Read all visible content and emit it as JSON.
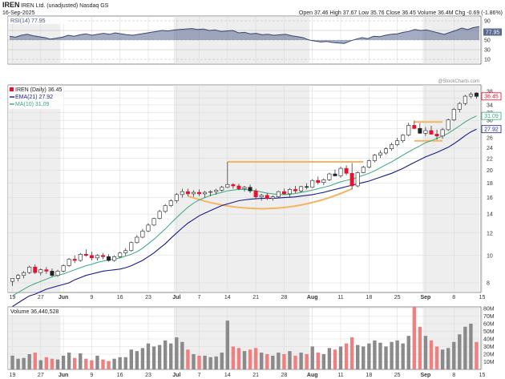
{
  "header": {
    "symbol": "IREN",
    "name": "IREN Ltd. (unadjusted) Nasdaq GS",
    "date": "16-Sep-2025",
    "quote": "Open 37.46  High 37.67  Low 35.76  Close 36.45  Volume 36.4M  Chg -0.69 (-1.86%)",
    "watermark": "@StockCharts.com"
  },
  "colors": {
    "up": "#ffffff",
    "down": "#e8102c",
    "ema": "#1a1a8a",
    "ma": "#3aa87c",
    "rsi": "#4a5a80",
    "pattern": "#f3b561",
    "volume_up": "#8a8a8a",
    "volume_down": "#ee8080",
    "panel_shade": "#eeeeee"
  },
  "chart_data": [
    {
      "type": "line",
      "title": "RSI(14) 77.95",
      "legend": [
        {
          "text": "RSI(14) 77.95",
          "color": "#4a5a80"
        }
      ],
      "series": [
        {
          "name": "RSI(14)",
          "values": [
            58,
            56,
            60,
            62,
            59,
            57,
            55,
            52,
            54,
            56,
            60,
            58,
            61,
            63,
            60,
            62,
            64,
            62,
            65,
            63,
            61,
            60,
            62,
            64,
            66,
            68,
            70,
            69,
            71,
            72,
            73,
            74,
            72,
            73,
            70,
            71,
            68,
            69,
            70,
            65,
            66,
            63,
            64,
            61,
            62,
            60,
            61,
            62,
            59,
            57,
            55,
            50,
            48,
            46,
            47,
            45,
            44,
            43,
            48,
            52,
            55,
            53,
            58,
            57,
            60,
            62,
            63,
            66,
            68,
            72,
            70,
            71,
            68,
            65,
            62,
            66,
            70,
            75,
            72,
            76,
            78
          ]
        }
      ],
      "ylim": [
        0,
        100
      ],
      "ticks": [
        "90",
        "70",
        "50",
        "30",
        "10"
      ],
      "tick_values": [
        90,
        70,
        50,
        30,
        10
      ],
      "current_label": "77.95",
      "current_value": 77.95
    },
    {
      "type": "candlestick",
      "title": "IREN (Daily) 36.45",
      "legend": [
        {
          "text": "IREN (Daily) 36.45",
          "color": "#222222"
        },
        {
          "text": "EMA(21) 27.92",
          "color": "#1a1a8a"
        },
        {
          "text": "MA(10) 31.09",
          "color": "#3aa87c"
        }
      ],
      "scale": "log",
      "ylim": [
        7.4,
        40
      ],
      "ticks": [
        "38",
        "36",
        "34",
        "32",
        "30",
        "28",
        "26",
        "24",
        "22",
        "20",
        "18",
        "16",
        "14",
        "12",
        "10",
        "8"
      ],
      "tick_values": [
        38,
        36,
        34,
        32,
        30,
        28,
        26,
        24,
        22,
        20,
        18,
        16,
        14,
        12,
        10,
        8
      ],
      "price_labels": [
        {
          "text": "36.45",
          "value": 36.45,
          "color": "#e8102c"
        },
        {
          "text": "31.09",
          "value": 31.09,
          "color": "#3aa87c"
        },
        {
          "text": "27.92",
          "value": 27.92,
          "color": "#1a1a8a"
        }
      ],
      "x_labels": [
        "19",
        "27",
        "Jun",
        "9",
        "16",
        "23",
        "Jul",
        "7",
        "14",
        "21",
        "28",
        "Aug",
        "11",
        "18",
        "25",
        "Sep",
        "8",
        "15"
      ],
      "x_label_index": [
        0,
        5,
        9,
        14,
        19,
        24,
        29,
        33,
        38,
        43,
        48,
        53,
        58,
        63,
        68,
        73,
        78,
        83
      ],
      "candles": [
        [
          8.1,
          8.3,
          7.8,
          8.3
        ],
        [
          8.3,
          8.6,
          8.1,
          8.5
        ],
        [
          8.5,
          8.8,
          8.3,
          8.7
        ],
        [
          8.7,
          9.2,
          8.6,
          9.1
        ],
        [
          9.1,
          9.3,
          8.6,
          8.7
        ],
        [
          8.7,
          9.0,
          8.5,
          8.9
        ],
        [
          8.9,
          9.1,
          8.6,
          8.8
        ],
        [
          8.8,
          9.0,
          8.4,
          8.5
        ],
        [
          8.5,
          8.9,
          8.4,
          8.8
        ],
        [
          8.8,
          9.3,
          8.7,
          9.2
        ],
        [
          9.2,
          9.8,
          9.1,
          9.7
        ],
        [
          9.7,
          10.0,
          9.4,
          9.6
        ],
        [
          9.6,
          10.2,
          9.5,
          10.1
        ],
        [
          10.1,
          10.5,
          9.9,
          10.0
        ],
        [
          10.0,
          10.3,
          9.6,
          9.8
        ],
        [
          9.8,
          10.1,
          9.6,
          10.0
        ],
        [
          10.0,
          10.2,
          9.7,
          9.9
        ],
        [
          9.9,
          10.1,
          9.5,
          9.6
        ],
        [
          9.6,
          10.0,
          9.5,
          9.9
        ],
        [
          9.9,
          10.3,
          9.8,
          10.2
        ],
        [
          10.2,
          10.6,
          10.0,
          10.4
        ],
        [
          10.4,
          11.2,
          10.3,
          11.1
        ],
        [
          11.1,
          11.8,
          11.0,
          11.6
        ],
        [
          11.6,
          12.4,
          11.5,
          12.2
        ],
        [
          12.2,
          13.0,
          12.1,
          12.8
        ],
        [
          12.8,
          13.6,
          12.7,
          13.5
        ],
        [
          13.5,
          14.5,
          13.4,
          14.3
        ],
        [
          14.3,
          15.2,
          14.1,
          15.0
        ],
        [
          15.0,
          15.8,
          14.8,
          15.6
        ],
        [
          15.6,
          16.6,
          15.3,
          16.4
        ],
        [
          16.4,
          17.2,
          16.0,
          16.8
        ],
        [
          16.8,
          17.2,
          16.2,
          16.5
        ],
        [
          16.5,
          17.0,
          16.1,
          16.7
        ],
        [
          16.7,
          17.1,
          16.2,
          16.5
        ],
        [
          16.5,
          16.9,
          16.0,
          16.7
        ],
        [
          16.7,
          17.0,
          16.2,
          16.8
        ],
        [
          16.8,
          17.2,
          16.4,
          17.0
        ],
        [
          17.0,
          17.6,
          16.8,
          17.4
        ],
        [
          17.4,
          21.4,
          17.3,
          17.8
        ],
        [
          17.8,
          18.0,
          17.2,
          17.6
        ],
        [
          17.6,
          17.9,
          17.0,
          17.2
        ],
        [
          17.2,
          17.6,
          16.8,
          17.4
        ],
        [
          17.4,
          17.8,
          16.6,
          16.9
        ],
        [
          16.9,
          17.2,
          15.9,
          16.1
        ],
        [
          16.1,
          16.5,
          15.6,
          16.3
        ],
        [
          16.3,
          16.6,
          15.7,
          15.9
        ],
        [
          15.9,
          16.3,
          15.6,
          16.1
        ],
        [
          16.1,
          16.9,
          16.0,
          16.8
        ],
        [
          16.8,
          17.2,
          16.4,
          16.5
        ],
        [
          16.5,
          17.3,
          16.1,
          17.1
        ],
        [
          17.1,
          17.6,
          16.6,
          16.9
        ],
        [
          16.9,
          17.6,
          16.7,
          17.5
        ],
        [
          17.5,
          18.0,
          17.1,
          17.4
        ],
        [
          17.4,
          18.6,
          17.3,
          18.4
        ],
        [
          18.4,
          19.0,
          17.8,
          18.1
        ],
        [
          18.1,
          18.7,
          17.7,
          18.5
        ],
        [
          18.5,
          19.6,
          18.3,
          19.4
        ],
        [
          19.4,
          20.1,
          19.0,
          19.1
        ],
        [
          19.1,
          20.6,
          18.8,
          20.3
        ],
        [
          20.3,
          20.8,
          19.2,
          19.5
        ],
        [
          19.5,
          21.2,
          17.1,
          17.6
        ],
        [
          17.6,
          19.8,
          17.4,
          19.6
        ],
        [
          19.6,
          20.7,
          19.5,
          20.5
        ],
        [
          20.5,
          21.8,
          20.3,
          21.6
        ],
        [
          21.6,
          22.8,
          21.3,
          22.6
        ],
        [
          22.6,
          23.5,
          22.1,
          23.0
        ],
        [
          23.0,
          24.1,
          22.7,
          23.8
        ],
        [
          23.8,
          25.0,
          23.4,
          24.6
        ],
        [
          24.6,
          26.0,
          24.3,
          25.4
        ],
        [
          25.4,
          26.8,
          25.0,
          26.6
        ],
        [
          26.6,
          29.4,
          26.3,
          28.8
        ],
        [
          28.8,
          29.9,
          27.9,
          28.1
        ],
        [
          28.1,
          29.3,
          26.9,
          27.0
        ],
        [
          27.0,
          28.4,
          26.4,
          27.6
        ],
        [
          27.6,
          28.7,
          26.7,
          26.8
        ],
        [
          26.8,
          27.8,
          25.6,
          26.4
        ],
        [
          26.4,
          28.2,
          25.8,
          27.8
        ],
        [
          27.8,
          30.4,
          27.5,
          30.1
        ],
        [
          30.1,
          33.2,
          29.8,
          32.8
        ],
        [
          32.8,
          34.8,
          32.0,
          34.4
        ],
        [
          34.4,
          36.9,
          33.9,
          36.5
        ],
        [
          36.5,
          37.7,
          35.9,
          37.1
        ],
        [
          37.46,
          37.67,
          35.76,
          36.45
        ]
      ],
      "ema21": [
        6.6,
        6.8,
        7.0,
        7.2,
        7.3,
        7.45,
        7.6,
        7.7,
        7.8,
        7.9,
        8.0,
        8.2,
        8.35,
        8.5,
        8.6,
        8.7,
        8.8,
        8.85,
        8.9,
        8.95,
        9.05,
        9.2,
        9.4,
        9.6,
        9.9,
        10.2,
        10.6,
        11.0,
        11.5,
        12.0,
        12.5,
        13.0,
        13.4,
        13.8,
        14.1,
        14.4,
        14.7,
        15.0,
        15.2,
        15.4,
        15.6,
        15.7,
        15.8,
        15.85,
        15.9,
        15.9,
        15.9,
        15.95,
        16.0,
        16.05,
        16.1,
        16.2,
        16.3,
        16.4,
        16.55,
        16.7,
        16.9,
        17.1,
        17.3,
        17.5,
        17.7,
        17.9,
        18.1,
        18.3,
        18.6,
        18.9,
        19.2,
        19.5,
        19.9,
        20.3,
        20.8,
        21.3,
        21.8,
        22.3,
        22.7,
        23.1,
        23.6,
        24.1,
        24.8,
        25.6,
        26.5,
        27.3,
        27.92
      ],
      "ma10": [
        7.2,
        7.4,
        7.6,
        7.8,
        7.95,
        8.1,
        8.25,
        8.4,
        8.5,
        8.6,
        8.75,
        8.9,
        9.05,
        9.2,
        9.3,
        9.45,
        9.55,
        9.65,
        9.7,
        9.8,
        9.95,
        10.1,
        10.3,
        10.6,
        11.0,
        11.4,
        11.9,
        12.4,
        13.0,
        13.6,
        14.2,
        14.8,
        15.3,
        15.7,
        16.0,
        16.3,
        16.5,
        16.7,
        16.9,
        17.0,
        17.1,
        17.1,
        17.0,
        16.9,
        16.75,
        16.6,
        16.5,
        16.4,
        16.4,
        16.45,
        16.55,
        16.7,
        16.85,
        17.0,
        17.2,
        17.4,
        17.6,
        17.9,
        18.2,
        18.4,
        18.6,
        18.9,
        19.2,
        19.5,
        19.9,
        20.4,
        20.9,
        21.4,
        22.0,
        22.6,
        23.2,
        23.8,
        24.4,
        25.0,
        25.4,
        25.9,
        26.4,
        27.0,
        27.8,
        28.7,
        29.6,
        30.4,
        31.09
      ]
    },
    {
      "type": "bar",
      "title": "Volume 36,440,528",
      "legend": [
        {
          "text": "Volume 36,440,528",
          "color": "#222222"
        }
      ],
      "ylim": [
        0,
        82
      ],
      "ticks": [
        "80M",
        "70M",
        "60M",
        "50M",
        "40M",
        "30M",
        "20M",
        "10M"
      ],
      "tick_values": [
        80,
        70,
        60,
        50,
        40,
        30,
        20,
        10
      ],
      "values": [
        18,
        14,
        15,
        20,
        22,
        12,
        16,
        14,
        13,
        18,
        22,
        15,
        21,
        14,
        12,
        18,
        13,
        11,
        14,
        16,
        16,
        26,
        24,
        28,
        34,
        30,
        32,
        38,
        34,
        42,
        36,
        26,
        20,
        18,
        18,
        16,
        17,
        22,
        64,
        30,
        28,
        24,
        26,
        28,
        22,
        20,
        18,
        22,
        20,
        24,
        18,
        22,
        20,
        30,
        22,
        20,
        28,
        26,
        30,
        34,
        42,
        32,
        30,
        34,
        38,
        35,
        30,
        36,
        38,
        34,
        44,
        82,
        56,
        44,
        38,
        30,
        26,
        28,
        36,
        46,
        56,
        60,
        36
      ]
    }
  ],
  "annotations": {
    "resistance": {
      "from_index": 38,
      "to_index": 62,
      "value": 21.4
    },
    "cup": {
      "from_index": 31,
      "to_index": 60,
      "low_index": 46,
      "left_value": 16.2,
      "right_value": 17.2,
      "low_value": 14.6
    },
    "flag": {
      "from_index": 71,
      "to_index": 76,
      "top_value": 29.6,
      "bottom_value": 25.4
    }
  }
}
